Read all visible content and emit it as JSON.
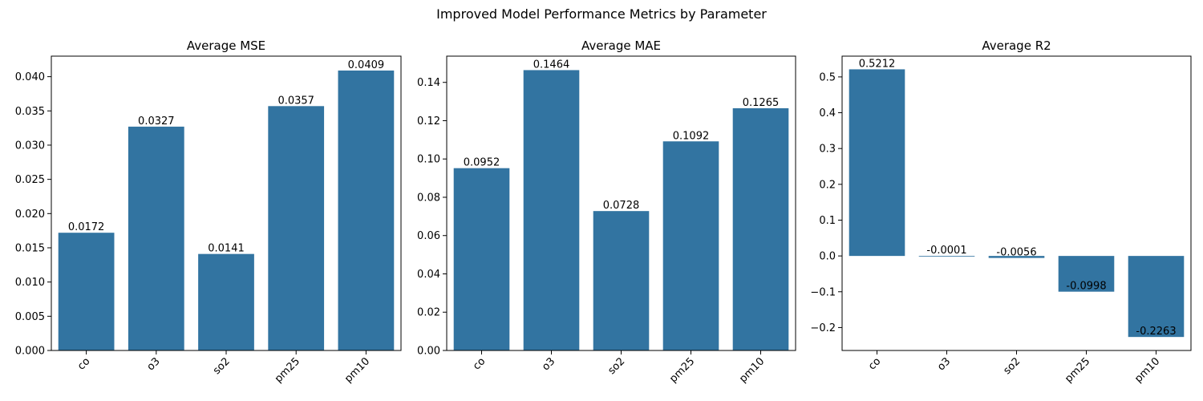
{
  "figure_title": "Improved Model Performance Metrics by Parameter",
  "colors": {
    "bar": "#3274a1",
    "axis": "#000000"
  },
  "chart_data": [
    {
      "type": "bar",
      "title": "Average MSE",
      "categories": [
        "co",
        "o3",
        "so2",
        "pm25",
        "pm10"
      ],
      "values": [
        0.0172,
        0.0327,
        0.0141,
        0.0357,
        0.0409
      ],
      "data_labels": [
        "0.0172",
        "0.0327",
        "0.0141",
        "0.0357",
        "0.0409"
      ],
      "xlabel": "",
      "ylabel": "",
      "ylim": [
        0,
        0.043
      ],
      "yticks": [
        0.0,
        0.005,
        0.01,
        0.015,
        0.02,
        0.025,
        0.03,
        0.035,
        0.04
      ],
      "ytick_labels": [
        "0.000",
        "0.005",
        "0.010",
        "0.015",
        "0.020",
        "0.025",
        "0.030",
        "0.035",
        "0.040"
      ],
      "grid": false
    },
    {
      "type": "bar",
      "title": "Average MAE",
      "categories": [
        "co",
        "o3",
        "so2",
        "pm25",
        "pm10"
      ],
      "values": [
        0.0952,
        0.1464,
        0.0728,
        0.1092,
        0.1265
      ],
      "data_labels": [
        "0.0952",
        "0.1464",
        "0.0728",
        "0.1092",
        "0.1265"
      ],
      "xlabel": "",
      "ylabel": "",
      "ylim": [
        0,
        0.1537
      ],
      "yticks": [
        0.0,
        0.02,
        0.04,
        0.06,
        0.08,
        0.1,
        0.12,
        0.14
      ],
      "ytick_labels": [
        "0.00",
        "0.02",
        "0.04",
        "0.06",
        "0.08",
        "0.10",
        "0.12",
        "0.14"
      ],
      "grid": false
    },
    {
      "type": "bar",
      "title": "Average R2",
      "categories": [
        "co",
        "o3",
        "so2",
        "pm25",
        "pm10"
      ],
      "values": [
        0.5212,
        -0.0001,
        -0.0056,
        -0.0998,
        -0.2263
      ],
      "data_labels": [
        "0.5212",
        "-0.0001",
        "-0.0056",
        "-0.0998",
        "-0.2263"
      ],
      "xlabel": "",
      "ylabel": "",
      "ylim": [
        -0.264,
        0.558
      ],
      "yticks": [
        -0.2,
        -0.1,
        0.0,
        0.1,
        0.2,
        0.3,
        0.4,
        0.5
      ],
      "ytick_labels": [
        "−0.2",
        "−0.1",
        "0.0",
        "0.1",
        "0.2",
        "0.3",
        "0.4",
        "0.5"
      ],
      "grid": false
    }
  ]
}
